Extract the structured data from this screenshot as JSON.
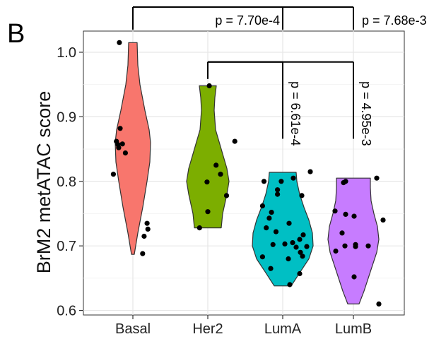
{
  "panel_label": "B",
  "chart_data": {
    "type": "violin",
    "title": "",
    "xlabel": "",
    "ylabel": "BrM2 metATAC score",
    "ylim": [
      0.6,
      1.05
    ],
    "yticks": [
      0.6,
      0.7,
      0.8,
      0.9,
      1.0
    ],
    "ytick_labels": [
      "0.6",
      "0.7",
      "0.8",
      "0.9",
      "1.0"
    ],
    "grid": true,
    "legend": "none",
    "categories": [
      "Basal",
      "Her2",
      "LumA",
      "LumB"
    ],
    "colors": [
      "#F8766D",
      "#7CAE00",
      "#00BFC4",
      "#C77CFF"
    ],
    "series": [
      {
        "category": "Basal",
        "violin_range": [
          0.687,
          1.015
        ],
        "profile": [
          [
            0.687,
            0.02
          ],
          [
            0.72,
            0.07
          ],
          [
            0.76,
            0.14
          ],
          [
            0.8,
            0.2
          ],
          [
            0.83,
            0.24
          ],
          [
            0.86,
            0.25
          ],
          [
            0.88,
            0.23
          ],
          [
            0.91,
            0.17
          ],
          [
            0.95,
            0.1
          ],
          [
            0.98,
            0.07
          ],
          [
            1.015,
            0.06
          ]
        ],
        "points": [
          [
            0.82,
            1.015
          ],
          [
            0.83,
            0.882
          ],
          [
            0.78,
            0.862
          ],
          [
            0.86,
            0.858
          ],
          [
            0.8,
            0.857
          ],
          [
            0.81,
            0.852
          ],
          [
            0.9,
            0.844
          ],
          [
            0.74,
            0.811
          ],
          [
            1.19,
            0.735
          ],
          [
            1.2,
            0.726
          ],
          [
            1.15,
            0.715
          ],
          [
            1.13,
            0.688
          ]
        ]
      },
      {
        "category": "Her2",
        "violin_range": [
          0.728,
          0.948
        ],
        "profile": [
          [
            0.728,
            0.19
          ],
          [
            0.75,
            0.21
          ],
          [
            0.78,
            0.27
          ],
          [
            0.8,
            0.3
          ],
          [
            0.82,
            0.27
          ],
          [
            0.85,
            0.19
          ],
          [
            0.88,
            0.11
          ],
          [
            0.91,
            0.09
          ],
          [
            0.93,
            0.1
          ],
          [
            0.948,
            0.12
          ]
        ],
        "points": [
          [
            2.02,
            0.948
          ],
          [
            2.36,
            0.862
          ],
          [
            2.11,
            0.825
          ],
          [
            2.17,
            0.811
          ],
          [
            1.99,
            0.799
          ],
          [
            2.25,
            0.778
          ],
          [
            2.0,
            0.753
          ],
          [
            1.89,
            0.728
          ]
        ]
      },
      {
        "category": "LumA",
        "violin_range": [
          0.638,
          0.814
        ],
        "profile": [
          [
            0.638,
            0.12
          ],
          [
            0.66,
            0.25
          ],
          [
            0.68,
            0.37
          ],
          [
            0.7,
            0.43
          ],
          [
            0.72,
            0.42
          ],
          [
            0.74,
            0.37
          ],
          [
            0.76,
            0.3
          ],
          [
            0.78,
            0.24
          ],
          [
            0.8,
            0.2
          ],
          [
            0.814,
            0.19
          ]
        ],
        "points": [
          [
            3.39,
            0.815
          ],
          [
            3.15,
            0.805
          ],
          [
            2.98,
            0.8
          ],
          [
            2.75,
            0.8
          ],
          [
            2.93,
            0.787
          ],
          [
            2.93,
            0.78
          ],
          [
            3.27,
            0.778
          ],
          [
            2.73,
            0.762
          ],
          [
            2.85,
            0.752
          ],
          [
            2.82,
            0.743
          ],
          [
            3.09,
            0.735
          ],
          [
            2.78,
            0.728
          ],
          [
            2.91,
            0.722
          ],
          [
            3.29,
            0.717
          ],
          [
            3.24,
            0.71
          ],
          [
            3.14,
            0.705
          ],
          [
            3.03,
            0.703
          ],
          [
            2.87,
            0.702
          ],
          [
            3.34,
            0.699
          ],
          [
            3.19,
            0.698
          ],
          [
            3.25,
            0.69
          ],
          [
            3.28,
            0.684
          ],
          [
            2.73,
            0.683
          ],
          [
            3.08,
            0.68
          ],
          [
            2.84,
            0.665
          ],
          [
            3.24,
            0.657
          ],
          [
            3.1,
            0.64
          ]
        ]
      },
      {
        "category": "LumB",
        "violin_range": [
          0.61,
          0.805
        ],
        "profile": [
          [
            0.61,
            0.08
          ],
          [
            0.63,
            0.15
          ],
          [
            0.66,
            0.24
          ],
          [
            0.69,
            0.33
          ],
          [
            0.71,
            0.36
          ],
          [
            0.73,
            0.34
          ],
          [
            0.75,
            0.29
          ],
          [
            0.77,
            0.25
          ],
          [
            0.79,
            0.24
          ],
          [
            0.805,
            0.24
          ]
        ],
        "points": [
          [
            4.33,
            0.805
          ],
          [
            3.89,
            0.8
          ],
          [
            3.86,
            0.798
          ],
          [
            3.74,
            0.754
          ],
          [
            3.89,
            0.749
          ],
          [
            4.01,
            0.746
          ],
          [
            4.42,
            0.74
          ],
          [
            3.84,
            0.72
          ],
          [
            4.03,
            0.702
          ],
          [
            3.88,
            0.7
          ],
          [
            4.03,
            0.699
          ],
          [
            4.21,
            0.7
          ],
          [
            3.75,
            0.692
          ],
          [
            4.01,
            0.652
          ],
          [
            4.36,
            0.61
          ]
        ]
      }
    ],
    "comparisons": [
      {
        "from": "Basal",
        "to": "LumA",
        "label": "p = 7.70e-4",
        "y": 1.07
      },
      {
        "from": "Basal",
        "to": "LumB",
        "label": "p = 7.68e-3",
        "y": 1.07
      },
      {
        "from": "Her2",
        "to": "LumA",
        "label": "p = 6.61e-4",
        "y": 0.985
      },
      {
        "from": "Her2",
        "to": "LumB",
        "label": "p = 4.95e-3",
        "y": 0.985
      }
    ]
  }
}
